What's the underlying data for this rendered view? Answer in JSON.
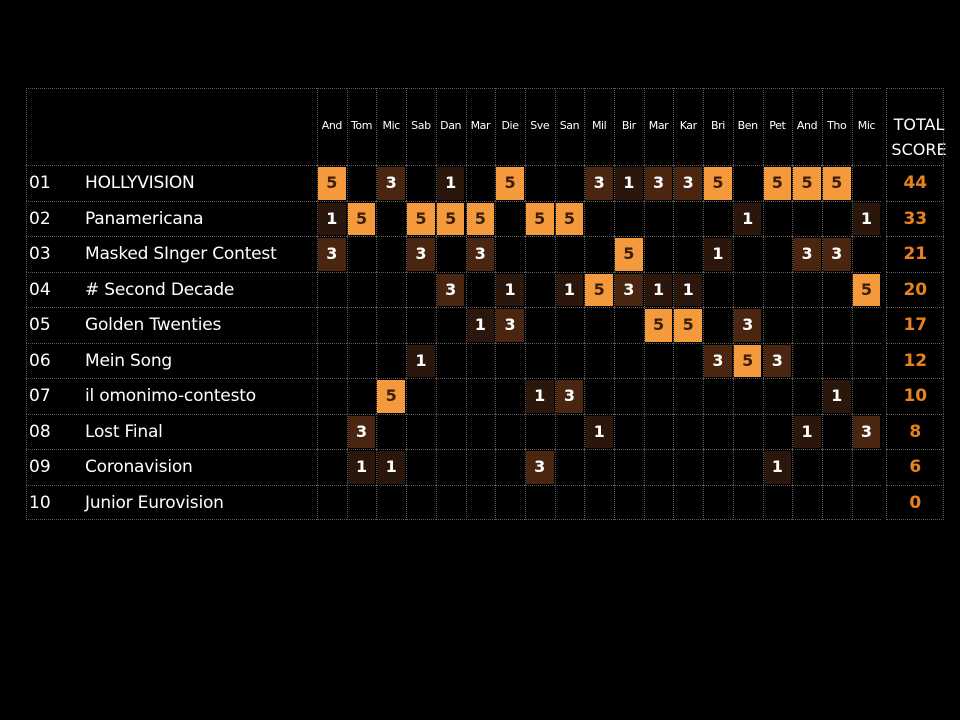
{
  "colors": {
    "points_5": "#f59a3c",
    "points_3": "#4a2610",
    "points_1": "#2a160a",
    "text_5": "#3a1f0a",
    "text_3": "#ffffff",
    "text_1": "#ffffff",
    "total": "#e8821f"
  },
  "header": {
    "total_line1": "TOTAL",
    "total_line2": "SCORE"
  },
  "chart_data": {
    "type": "table",
    "jurors": [
      "And",
      "Tom",
      "Mic",
      "Sab",
      "Dan",
      "Mar",
      "Die",
      "Sve",
      "San",
      "Mil",
      "Bir",
      "Mar",
      "Kar",
      "Bri",
      "Ben",
      "Pet",
      "And",
      "Tho",
      "Mic"
    ],
    "rows": [
      {
        "rank": "01",
        "name": "HOLLYVISION",
        "points": [
          5,
          null,
          3,
          null,
          1,
          null,
          5,
          null,
          null,
          3,
          1,
          3,
          3,
          5,
          null,
          5,
          5,
          5,
          null
        ],
        "total": "44"
      },
      {
        "rank": "02",
        "name": "Panamericana",
        "points": [
          1,
          5,
          null,
          5,
          5,
          5,
          null,
          5,
          5,
          null,
          null,
          null,
          null,
          null,
          1,
          null,
          null,
          null,
          1
        ],
        "total": "33"
      },
      {
        "rank": "03",
        "name": "Masked SInger Contest",
        "points": [
          3,
          null,
          null,
          3,
          null,
          3,
          null,
          null,
          null,
          null,
          5,
          null,
          null,
          1,
          null,
          null,
          3,
          3,
          null
        ],
        "total": "21"
      },
      {
        "rank": "04",
        "name": "# Second Decade",
        "points": [
          null,
          null,
          null,
          null,
          3,
          null,
          1,
          null,
          1,
          5,
          3,
          1,
          1,
          null,
          null,
          null,
          null,
          null,
          5
        ],
        "total": "20"
      },
      {
        "rank": "05",
        "name": "Golden Twenties",
        "points": [
          null,
          null,
          null,
          null,
          null,
          1,
          3,
          null,
          null,
          null,
          null,
          5,
          5,
          null,
          3,
          null,
          null,
          null,
          null
        ],
        "total": "17"
      },
      {
        "rank": "06",
        "name": "Mein Song",
        "points": [
          null,
          null,
          null,
          1,
          null,
          null,
          null,
          null,
          null,
          null,
          null,
          null,
          null,
          3,
          5,
          3,
          null,
          null,
          null
        ],
        "total": "12"
      },
      {
        "rank": "07",
        "name": "il omonimo-contesto",
        "points": [
          null,
          null,
          5,
          null,
          null,
          null,
          null,
          1,
          3,
          null,
          null,
          null,
          null,
          null,
          null,
          null,
          null,
          1,
          null
        ],
        "total": "10"
      },
      {
        "rank": "08",
        "name": "Lost Final",
        "points": [
          null,
          3,
          null,
          null,
          null,
          null,
          null,
          null,
          null,
          1,
          null,
          null,
          null,
          null,
          null,
          null,
          1,
          null,
          3
        ],
        "total": "8"
      },
      {
        "rank": "09",
        "name": "Coronavision",
        "points": [
          null,
          1,
          1,
          null,
          null,
          null,
          null,
          3,
          null,
          null,
          null,
          null,
          null,
          null,
          null,
          1,
          null,
          null,
          null
        ],
        "total": "6"
      },
      {
        "rank": "10",
        "name": "Junior Eurovision",
        "points": [
          null,
          null,
          null,
          null,
          null,
          null,
          null,
          null,
          null,
          null,
          null,
          null,
          null,
          null,
          null,
          null,
          null,
          null,
          null
        ],
        "total": "0"
      }
    ]
  }
}
